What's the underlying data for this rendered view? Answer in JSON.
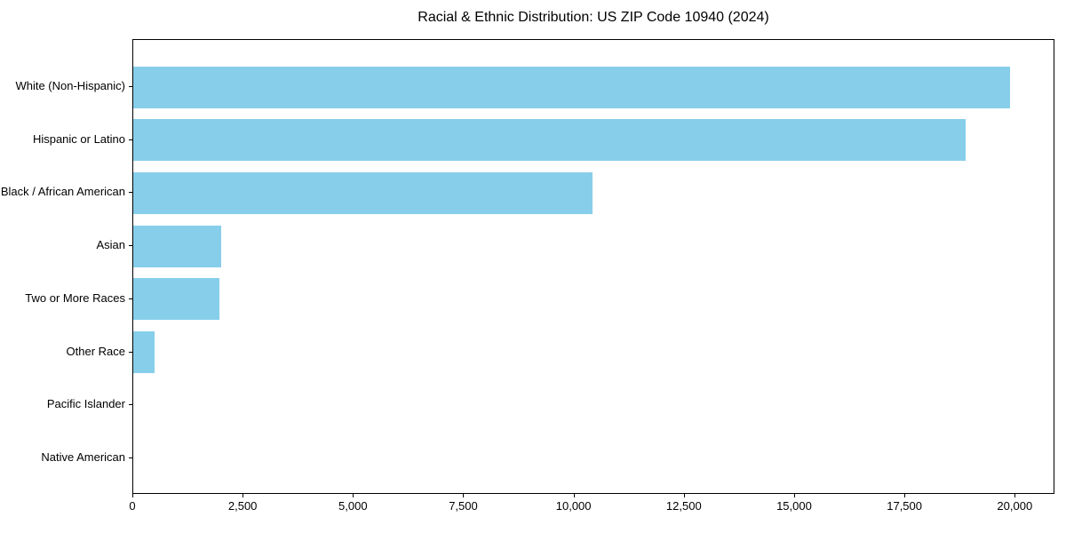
{
  "chart_data": {
    "type": "bar",
    "orientation": "horizontal",
    "title": "Racial & Ethnic Distribution: US ZIP Code 10940 (2024)",
    "categories": [
      "White (Non-Hispanic)",
      "Hispanic or Latino",
      "Black / African American",
      "Asian",
      "Two or More Races",
      "Other Race",
      "Pacific Islander",
      "Native American"
    ],
    "values": [
      19880,
      18860,
      10400,
      2000,
      1950,
      480,
      0,
      0
    ],
    "xlabel": "",
    "ylabel": "",
    "xlim": [
      0,
      20900
    ],
    "x_ticks": [
      0,
      2500,
      5000,
      7500,
      10000,
      12500,
      15000,
      17500,
      20000
    ],
    "x_tick_labels": [
      "0",
      "2,500",
      "5,000",
      "7,500",
      "10,000",
      "12,500",
      "15,000",
      "17,500",
      "20,000"
    ],
    "grid": false,
    "legend": null,
    "colors": {
      "bar": "#87CEEB",
      "text": "#000000",
      "spine": "#000000",
      "background": "#ffffff"
    }
  }
}
